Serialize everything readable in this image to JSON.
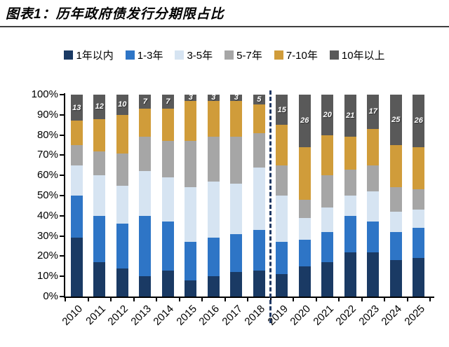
{
  "title": "图表1：历年政府债发行分期限占比",
  "chart_data": {
    "type": "bar",
    "subtype": "stacked-percent",
    "title": "图表1：历年政府债发行分期限占比",
    "legend_position": "top",
    "grid": false,
    "x_label_rotation": -45,
    "ylim": [
      0,
      100
    ],
    "y_tick_labels": [
      "100%",
      "90%",
      "80%",
      "70%",
      "60%",
      "50%",
      "40%",
      "30%",
      "20%",
      "10%",
      "0%"
    ],
    "categories": [
      "2010",
      "2011",
      "2012",
      "2013",
      "2014",
      "2015",
      "2016",
      "2017",
      "2018",
      "2019",
      "2020",
      "2021",
      "2022",
      "2023",
      "2024",
      "2025"
    ],
    "series": [
      {
        "name": "1年以内",
        "color": "#1a3a64",
        "values": [
          29,
          17,
          14,
          10,
          13,
          8,
          10,
          12,
          13,
          11,
          15,
          17,
          22,
          22,
          18,
          19
        ]
      },
      {
        "name": "1-3年",
        "color": "#2e75c6",
        "values": [
          21,
          23,
          22,
          30,
          24,
          19,
          19,
          19,
          20,
          16,
          13,
          15,
          18,
          15,
          14,
          15
        ]
      },
      {
        "name": "3-5年",
        "color": "#d6e4f2",
        "values": [
          15,
          20,
          19,
          22,
          22,
          27,
          28,
          25,
          31,
          23,
          11,
          12,
          10,
          15,
          10,
          9
        ]
      },
      {
        "name": "5-7年",
        "color": "#a6a6a6",
        "values": [
          10,
          12,
          16,
          17,
          18,
          23,
          22,
          23,
          17,
          15,
          9,
          16,
          13,
          13,
          12,
          10
        ]
      },
      {
        "name": "7-10年",
        "color": "#d09c3a",
        "values": [
          12,
          16,
          19,
          14,
          16,
          20,
          18,
          18,
          14,
          20,
          26,
          20,
          16,
          18,
          21,
          21
        ]
      },
      {
        "name": "10年以上",
        "color": "#595959",
        "values": [
          13,
          12,
          10,
          7,
          7,
          3,
          3,
          3,
          5,
          15,
          26,
          20,
          21,
          17,
          25,
          26
        ]
      }
    ],
    "bar_top_labels": [
      "13",
      "12",
      "10",
      "7",
      "7",
      "3",
      "3",
      "3",
      "5",
      "15",
      "26",
      "20",
      "21",
      "17",
      "25",
      "26"
    ],
    "divider": {
      "after_category": "2018",
      "color": "#1f3864",
      "style": "dashed"
    }
  }
}
